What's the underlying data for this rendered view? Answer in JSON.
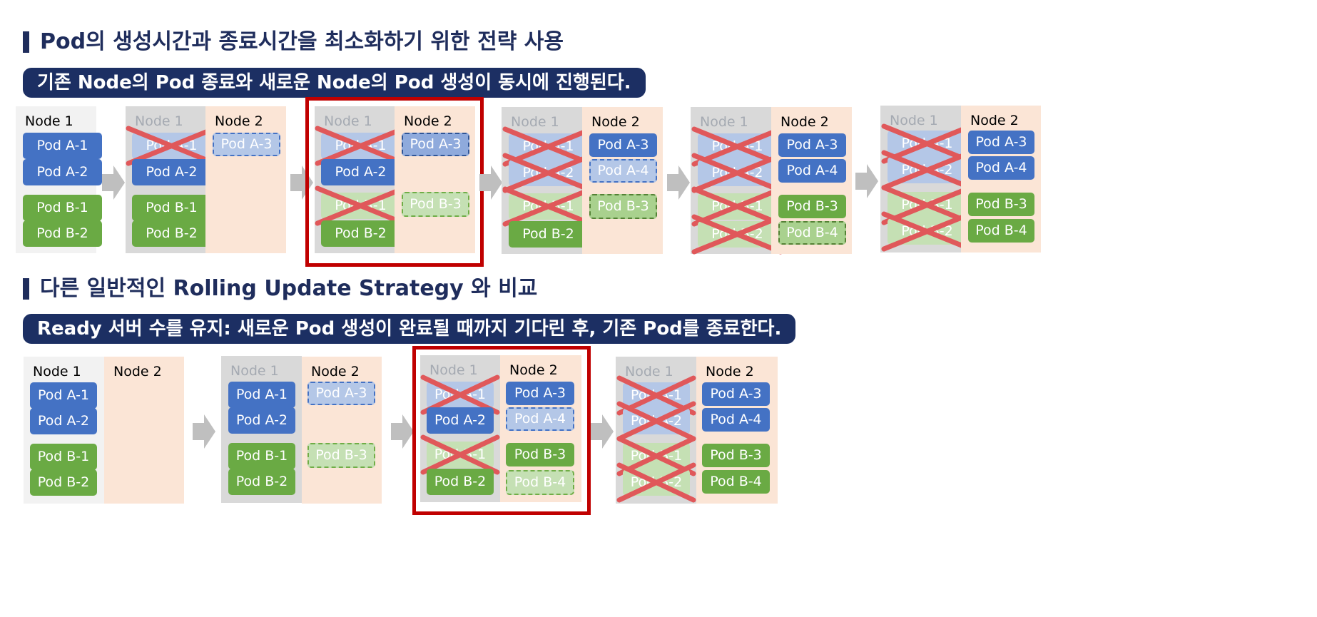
{
  "section1_title": "Pod의 생성시간과 종료시간을 최소화하기 위한 전략 사용",
  "banner1": "기존 Node의 Pod 종료와 새로운 Node의 Pod 생성이 동시에 진행된다.",
  "section2_title": "다른 일반적인 Rolling Update Strategy 와 비교",
  "banner2": "Ready 서버 수를 유지:  새로운 Pod 생성이 완료될 때까지 기다린 후, 기존 Pod를 종료한다.",
  "labels": {
    "node1": "Node 1",
    "node2": "Node 2",
    "a1": "Pod A-1",
    "a2": "Pod A-2",
    "a3": "Pod A-3",
    "a4": "Pod A-4",
    "b1": "Pod B-1",
    "b2": "Pod B-2",
    "b3": "Pod B-3",
    "b4": "Pod B-4"
  },
  "pod_states": [
    "running",
    "terminating",
    "pending",
    "starting"
  ],
  "colors": {
    "title": "#1f2d5c",
    "banner": "#1c2f63",
    "pod_a": "#4472c4",
    "pod_b": "#6aaa44",
    "node1_bg": "#f2f2f2",
    "node1_old_bg": "#d9d9d9",
    "node2_bg": "#fbe5d6",
    "highlight": "#c00000",
    "cross": "#e0585a",
    "arrow": "#bfbfbf"
  }
}
